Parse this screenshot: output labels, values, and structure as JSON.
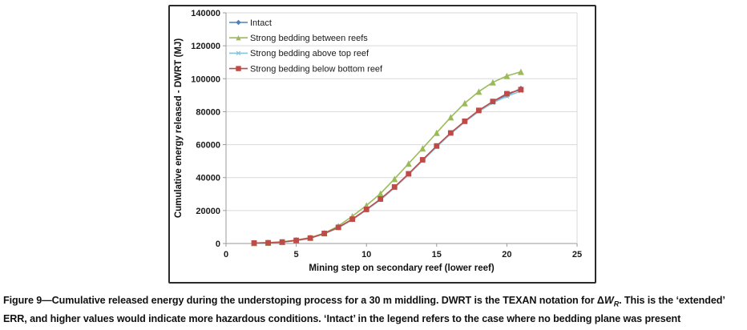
{
  "chart_data": {
    "type": "line",
    "title": "",
    "xlabel": "Mining step on secondary reef (lower reef)",
    "ylabel": "Cumulative energy released - DWRT (MJ)",
    "xlim": [
      0,
      25
    ],
    "ylim": [
      0,
      140000
    ],
    "xticks": [
      0,
      5,
      10,
      15,
      20,
      25
    ],
    "yticks": [
      0,
      20000,
      40000,
      60000,
      80000,
      100000,
      120000,
      140000
    ],
    "grid": "horizontal",
    "legend_position": "top-left-inside",
    "x": [
      2,
      3,
      4,
      5,
      6,
      7,
      8,
      9,
      10,
      11,
      12,
      13,
      14,
      15,
      16,
      17,
      18,
      19,
      20,
      21
    ],
    "series": [
      {
        "key": "intact",
        "name": "Intact",
        "color": "#4F81BD",
        "marker": "diamond",
        "values": [
          250,
          400,
          800,
          1800,
          3200,
          6000,
          9700,
          14600,
          20600,
          26800,
          34200,
          42200,
          50600,
          59100,
          67000,
          74100,
          80600,
          86000,
          90000,
          94100
        ]
      },
      {
        "key": "between-reefs",
        "name": "Strong bedding between reefs",
        "color": "#9BBB59",
        "marker": "triangle",
        "values": [
          300,
          500,
          1000,
          2100,
          3600,
          6300,
          10600,
          16600,
          23100,
          30300,
          39200,
          48500,
          57700,
          67200,
          76600,
          85200,
          92200,
          97800,
          101700,
          104200
        ]
      },
      {
        "key": "above-top-reef",
        "name": "Strong bedding above top reef",
        "color": "#85C6DB",
        "marker": "star",
        "values": [
          250,
          400,
          800,
          1800,
          3200,
          5900,
          9500,
          14400,
          20300,
          26500,
          33800,
          41800,
          50200,
          58600,
          66600,
          73700,
          80100,
          85400,
          89400,
          92500
        ]
      },
      {
        "key": "below-bottom-reef",
        "name": "Strong bedding below bottom reef",
        "color": "#BE4B48",
        "marker": "square",
        "values": [
          300,
          450,
          900,
          1900,
          3300,
          6100,
          9800,
          14800,
          20700,
          27000,
          34300,
          42300,
          50800,
          59200,
          67100,
          74200,
          80800,
          86200,
          90900,
          93400
        ]
      }
    ],
    "colors": {
      "grid": "#D9D9D9",
      "axis": "#9A9A9A",
      "tick_text": "#1a1a1a"
    }
  },
  "caption": {
    "line1_pre": "Figure 9—Cumulative released energy during the understoping process for a 30 m middling. DWRT is the TEXAN notation for Δ",
    "italic_w": "W",
    "sub_r": "R",
    "line1_post": ". This is the ‘extended’",
    "line2": "ERR, and higher values would indicate more hazardous conditions. ‘Intact’ in the legend refers to the case where no bedding plane was present"
  }
}
